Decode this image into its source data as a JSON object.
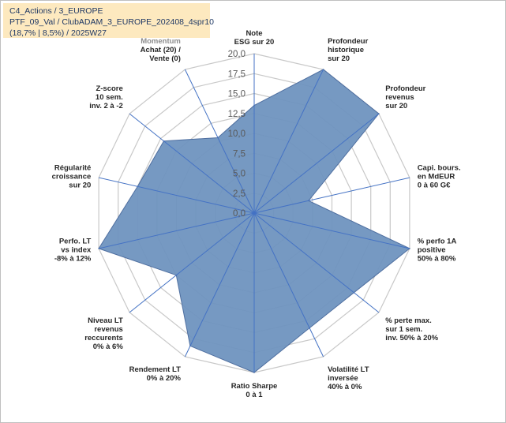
{
  "header": {
    "line1": "C4_Actions / 3_EUROPE",
    "line2": "PTF_09_Val / ClubADAM_3_EUROPE_202408_4spr10",
    "line3": "(18,7% | 8,5%) / 2025W27"
  },
  "chart_data": {
    "type": "radar",
    "title": "",
    "rmin": 0,
    "rmax": 20,
    "ticks": [
      "0,0",
      "2,5",
      "5,0",
      "7,5",
      "10,0",
      "12,5",
      "15,0",
      "17,5",
      "20,0"
    ],
    "tick_values": [
      0,
      2.5,
      5,
      7.5,
      10,
      12.5,
      15,
      17.5,
      20
    ],
    "grid": true,
    "colors": {
      "fill": "#6f93bf",
      "stroke": "#4f6fa0",
      "grid": "#c8c8c8",
      "spoke": "#4472c4"
    },
    "categories": [
      {
        "lines": [
          "Note",
          "ESG sur 20"
        ]
      },
      {
        "lines": [
          "Profondeur",
          "historique",
          "sur 20"
        ]
      },
      {
        "lines": [
          "Profondeur",
          "revenus",
          "sur 20"
        ]
      },
      {
        "lines": [
          "Capi. bours.",
          "en MdEUR",
          "0 à 60 G€"
        ]
      },
      {
        "lines": [
          "% perfo 1A",
          "positive",
          "50% à 80%"
        ]
      },
      {
        "lines": [
          "% perte max.",
          "sur 1 sem.",
          "inv. 50% à 20%"
        ]
      },
      {
        "lines": [
          "Volatilité LT",
          "inversée",
          "40% à 0%"
        ]
      },
      {
        "lines": [
          "Ratio Sharpe",
          "0 à 1"
        ]
      },
      {
        "lines": [
          "Rendement LT",
          "0% à 20%"
        ]
      },
      {
        "lines": [
          "Niveau LT",
          "revenus",
          "reccurents",
          "0% à 6%"
        ]
      },
      {
        "lines": [
          "Perfo. LT",
          "vs index",
          "-8% à 12%"
        ]
      },
      {
        "lines": [
          "Régularité",
          "croissance",
          "sur 20"
        ]
      },
      {
        "lines": [
          "Z-score",
          "10 sem.",
          "inv. 2 à -2"
        ]
      },
      {
        "lines": [
          "Momentum",
          "Achat (20) /",
          "Vente (0)"
        ]
      }
    ],
    "series": [
      {
        "values": [
          13.5,
          20,
          20,
          7,
          20,
          16,
          16,
          20,
          18.5,
          12.5,
          20,
          15,
          14.5,
          10.5
        ]
      }
    ]
  }
}
